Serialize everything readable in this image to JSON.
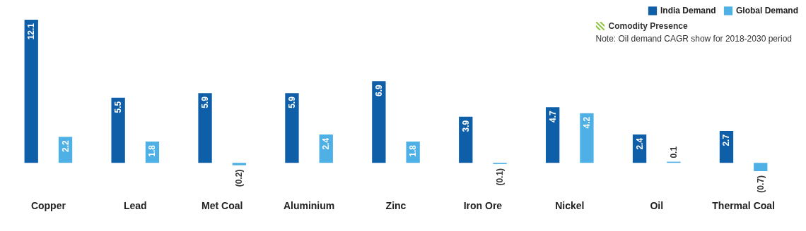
{
  "chart_data": {
    "type": "bar",
    "categories": [
      "Copper",
      "Lead",
      "Met Coal",
      "Aluminium",
      "Zinc",
      "Iron Ore",
      "Nickel",
      "Oil",
      "Thermal Coal"
    ],
    "series": [
      {
        "name": "India Demand",
        "color": "#0e5fa8",
        "values": [
          12.1,
          5.5,
          5.9,
          5.9,
          6.9,
          3.9,
          4.7,
          2.4,
          2.7
        ],
        "value_labels": [
          "12.1",
          "5.5",
          "5.9",
          "5.9",
          "6.9",
          "3.9",
          "4.7",
          "2.4",
          "2.7"
        ]
      },
      {
        "name": "Global Demand",
        "color": "#4fb0e6",
        "values": [
          2.2,
          1.8,
          -0.2,
          2.4,
          1.8,
          -0.1,
          4.2,
          0.1,
          -0.7
        ],
        "value_labels": [
          "2.2",
          "1.8",
          "(0.2)",
          "2.4",
          "1.8",
          "(0.1)",
          "4.2",
          "0.1",
          "(0.7)"
        ]
      }
    ],
    "annotations": [
      "Comodity Presence",
      "Note: Oil demand CAGR show for 2018-2030 period"
    ],
    "legend": "top right"
  }
}
